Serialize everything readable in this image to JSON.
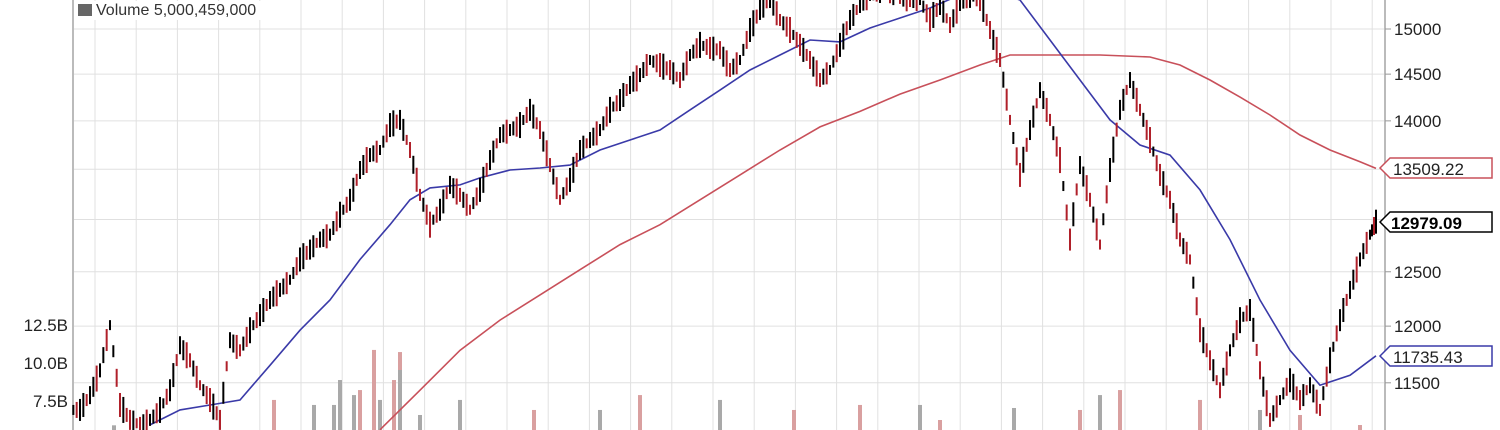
{
  "chart_data": {
    "type": "ohlc-line",
    "legend": {
      "volume_label": "Volume 5,000,459,000"
    },
    "y_axis": {
      "scale": "log",
      "ticks": [
        15000,
        14500,
        14000,
        12500,
        12000,
        11500
      ],
      "position": "right"
    },
    "volume_axis": {
      "ticks": [
        "12.5B",
        "10.0B",
        "7.5B"
      ],
      "tick_values": [
        12.5,
        10.0,
        7.5
      ],
      "position": "left",
      "unit": "B"
    },
    "grid": true,
    "colors": {
      "up": "#000000",
      "down": "#b0202a",
      "ma_short": "#3a3aa8",
      "ma_long": "#c8505a",
      "volume_up": "#a9a9a9",
      "volume_down": "#d9a0a0"
    },
    "price_close": [
      11268,
      11394,
      11608,
      12009,
      11310,
      11184,
      11142,
      11184,
      11268,
      11436,
      11829,
      11696,
      11479,
      11352,
      11184,
      11874,
      11784,
      11963,
      12100,
      12238,
      12331,
      12425,
      12616,
      12710,
      12806,
      12853,
      13047,
      13194,
      13493,
      13645,
      13697,
      13956,
      14010,
      13697,
      13243,
      12950,
      13096,
      13343,
      13243,
      13096,
      13293,
      13594,
      13852,
      13904,
      13956,
      14116,
      13904,
      13543,
      13194,
      13393,
      13697,
      13800,
      13904,
      14116,
      14221,
      14382,
      14490,
      14655,
      14600,
      14545,
      14436,
      14710,
      14822,
      14788,
      14764,
      14545,
      14655,
      14989,
      15216,
      15330,
      15102,
      14989,
      14822,
      14655,
      14436,
      14545,
      14822,
      15102,
      15273,
      15389,
      15446,
      15420,
      15389,
      15330,
      15330,
      15102,
      15273,
      15045,
      15273,
      15389,
      15330,
      14989,
      14655,
      14010,
      13443,
      13904,
      14327,
      14010,
      13594,
      12806,
      13543,
      13194,
      12758,
      13493,
      14116,
      14436,
      14116,
      13800,
      13443,
      13194,
      12806,
      12616,
      11963,
      11696,
      11436,
      11784,
      12054,
      12146,
      11608,
      11184,
      11352,
      11522,
      11352,
      11479,
      11268,
      11696,
      12054,
      12331,
      12616,
      12853,
      12979.09
    ],
    "ma_short": [
      [
        7,
        11142
      ],
      [
        10,
        11268
      ],
      [
        13,
        11310
      ],
      [
        16,
        11352
      ],
      [
        19,
        11652
      ],
      [
        22,
        11963
      ],
      [
        25,
        12238
      ],
      [
        28,
        12616
      ],
      [
        31,
        12950
      ],
      [
        33,
        13194
      ],
      [
        35,
        13313
      ],
      [
        38,
        13343
      ],
      [
        40,
        13413
      ],
      [
        43,
        13493
      ],
      [
        46,
        13513
      ],
      [
        49,
        13543
      ],
      [
        52,
        13697
      ],
      [
        55,
        13800
      ],
      [
        58,
        13904
      ],
      [
        61,
        14116
      ],
      [
        64,
        14327
      ],
      [
        67,
        14545
      ],
      [
        70,
        14710
      ],
      [
        73,
        14877
      ],
      [
        76,
        14855
      ],
      [
        79,
        15011
      ],
      [
        82,
        15124
      ],
      [
        85,
        15238
      ],
      [
        88,
        15389
      ],
      [
        91,
        15446
      ],
      [
        94,
        15330
      ],
      [
        97,
        14877
      ],
      [
        100,
        14436
      ],
      [
        103,
        14010
      ],
      [
        106,
        13749
      ],
      [
        109,
        13645
      ],
      [
        112,
        13293
      ],
      [
        115,
        12806
      ],
      [
        118,
        12238
      ],
      [
        121,
        11784
      ],
      [
        124,
        11479
      ],
      [
        127,
        11565
      ],
      [
        130,
        11735.43
      ]
    ],
    "ma_long": [
      [
        30,
        11101
      ],
      [
        34,
        11436
      ],
      [
        38,
        11784
      ],
      [
        42,
        12054
      ],
      [
        46,
        12285
      ],
      [
        50,
        12519
      ],
      [
        54,
        12758
      ],
      [
        58,
        12950
      ],
      [
        62,
        13194
      ],
      [
        66,
        13443
      ],
      [
        70,
        13697
      ],
      [
        74,
        13937
      ],
      [
        78,
        14100
      ],
      [
        82,
        14284
      ],
      [
        86,
        14436
      ],
      [
        90,
        14600
      ],
      [
        93,
        14710
      ],
      [
        97,
        14710
      ],
      [
        102,
        14710
      ],
      [
        107,
        14688
      ],
      [
        110,
        14600
      ],
      [
        113,
        14436
      ],
      [
        116,
        14252
      ],
      [
        119,
        14062
      ],
      [
        122,
        13852
      ],
      [
        125,
        13697
      ],
      [
        128,
        13577
      ],
      [
        130,
        13509.22
      ]
    ],
    "last_values": {
      "ma_long": "13509.22",
      "close": "12979.09",
      "ma_short": "11735.43"
    },
    "volume": [
      [
        3,
        5.9,
        "up"
      ],
      [
        19,
        7.57,
        "down"
      ],
      [
        23,
        7.24,
        "up"
      ],
      [
        25,
        7.24,
        "up"
      ],
      [
        26,
        8.88,
        "up"
      ],
      [
        27,
        7.89,
        "up"
      ],
      [
        28,
        8.22,
        "down"
      ],
      [
        29,
        10.86,
        "down"
      ],
      [
        30,
        7.57,
        "up"
      ],
      [
        31,
        8.88,
        "down"
      ],
      [
        32,
        10.72,
        "down"
      ],
      [
        32,
        9.54,
        "up"
      ],
      [
        34,
        6.58,
        "up"
      ],
      [
        38,
        7.57,
        "up"
      ],
      [
        45,
        6.91,
        "down"
      ],
      [
        52,
        6.91,
        "up"
      ],
      [
        56,
        7.89,
        "down"
      ],
      [
        64,
        7.57,
        "up"
      ],
      [
        71,
        6.91,
        "down"
      ],
      [
        78,
        6.91,
        "up"
      ],
      [
        78,
        7.24,
        "down"
      ],
      [
        84,
        7.24,
        "up"
      ],
      [
        86,
        6.25,
        "down"
      ],
      [
        93,
        7.04,
        "up"
      ],
      [
        100,
        6.91,
        "down"
      ],
      [
        102,
        7.89,
        "up"
      ],
      [
        104,
        8.22,
        "down"
      ],
      [
        112,
        7.57,
        "down"
      ],
      [
        118,
        6.91,
        "up"
      ],
      [
        122,
        6.58,
        "down"
      ],
      [
        128,
        5.92,
        "down"
      ]
    ]
  }
}
